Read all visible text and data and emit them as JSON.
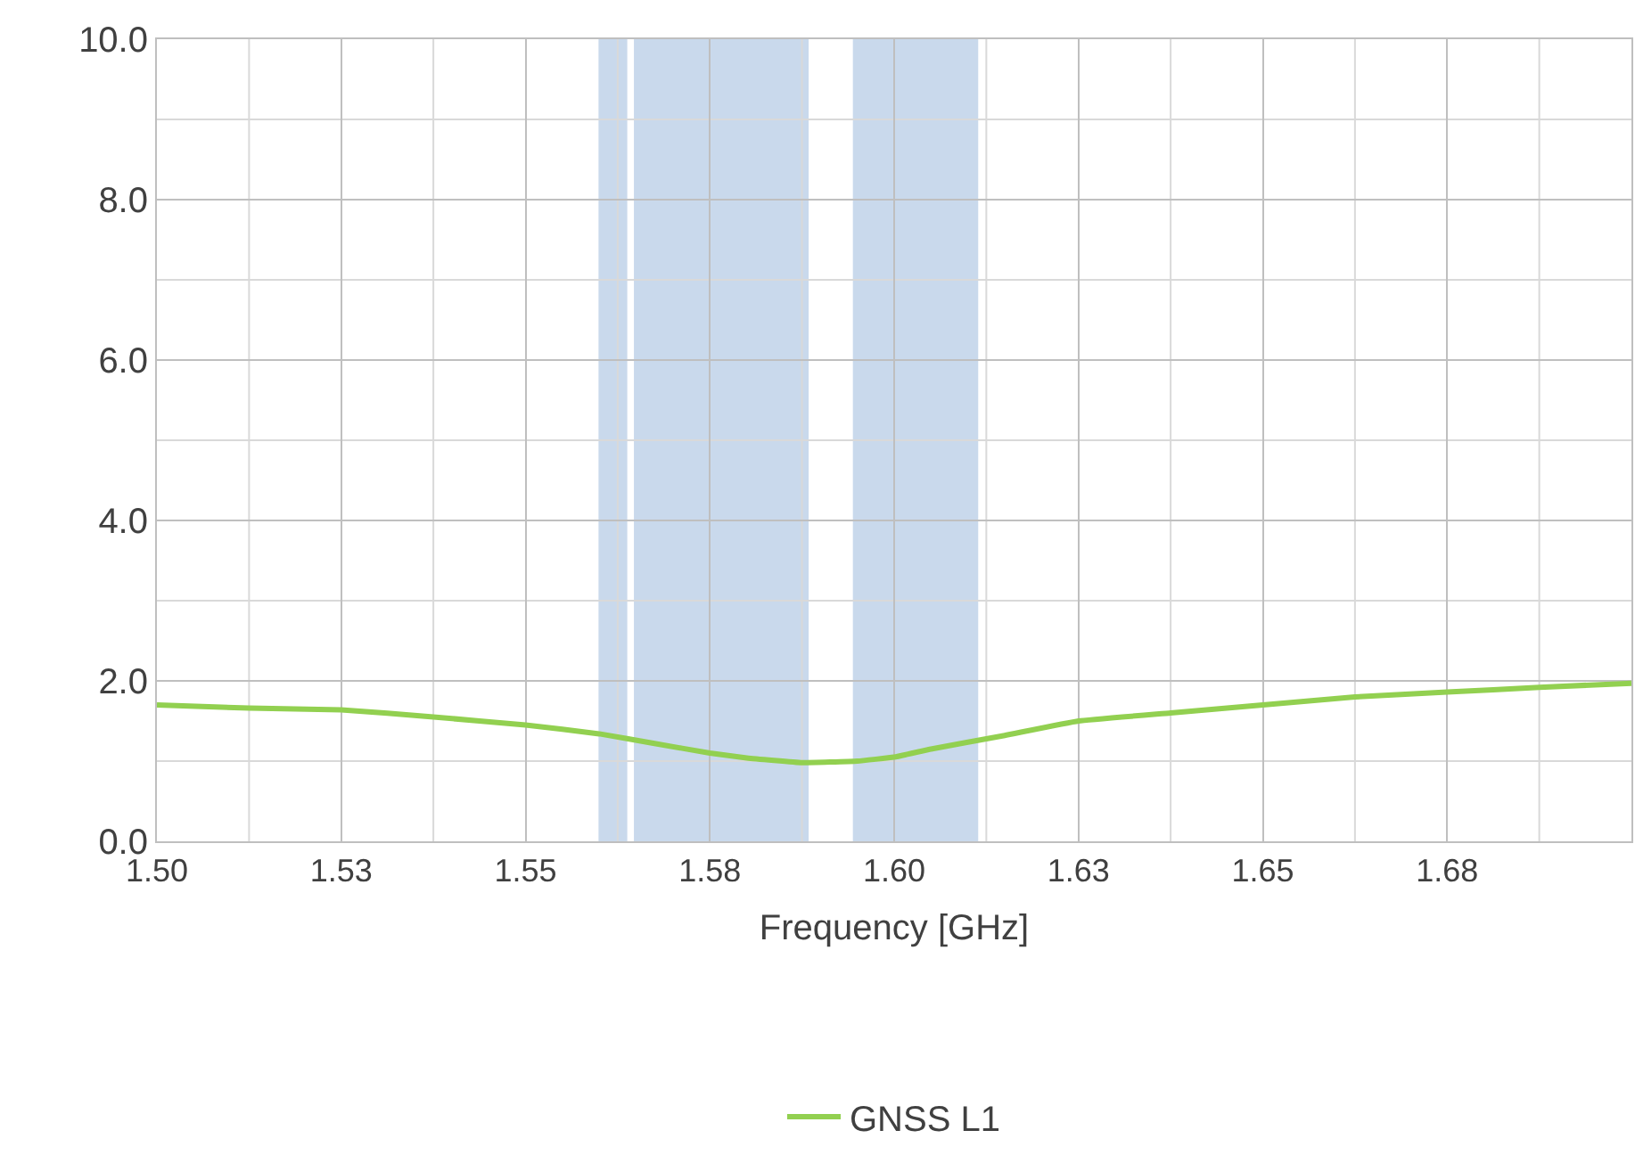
{
  "chart_data": {
    "type": "line",
    "xlabel": "Frequency [GHz]",
    "x": [
      1.5,
      1.5125,
      1.525,
      1.5375,
      1.55,
      1.56,
      1.5675,
      1.575,
      1.58,
      1.5875,
      1.595,
      1.6,
      1.605,
      1.615,
      1.625,
      1.6375,
      1.65,
      1.6625,
      1.675,
      1.6875,
      1.7
    ],
    "series": [
      {
        "name": "GNSS L1",
        "color": "#92d050",
        "values": [
          1.7,
          1.66,
          1.64,
          1.55,
          1.45,
          1.34,
          1.22,
          1.1,
          1.04,
          0.98,
          1.0,
          1.05,
          1.15,
          1.32,
          1.5,
          1.6,
          1.7,
          1.8,
          1.86,
          1.92,
          1.97
        ]
      }
    ],
    "xlim": [
      1.5,
      1.7
    ],
    "xticks": [
      {
        "value": 1.5,
        "label": "1.50"
      },
      {
        "value": 1.525,
        "label": "1.53"
      },
      {
        "value": 1.55,
        "label": "1.55"
      },
      {
        "value": 1.575,
        "label": "1.58"
      },
      {
        "value": 1.6,
        "label": "1.60"
      },
      {
        "value": 1.625,
        "label": "1.63"
      },
      {
        "value": 1.65,
        "label": "1.65"
      },
      {
        "value": 1.675,
        "label": "1.68"
      }
    ],
    "ylim": [
      0,
      10
    ],
    "yticks": [
      {
        "value": 0,
        "label": "0.0"
      },
      {
        "value": 2,
        "label": "2.0"
      },
      {
        "value": 4,
        "label": "4.0"
      },
      {
        "value": 6,
        "label": "6.0"
      },
      {
        "value": 8,
        "label": "8.0"
      },
      {
        "value": 10,
        "label": "10.0"
      }
    ],
    "bands": [
      {
        "axis": "x",
        "from": 1.5599,
        "to": 1.5638,
        "color": "#c9d9ec"
      },
      {
        "axis": "x",
        "from": 1.5647,
        "to": 1.5884,
        "color": "#c9d9ec"
      },
      {
        "axis": "x",
        "from": 1.5944,
        "to": 1.6114,
        "color": "#c9d9ec"
      }
    ],
    "grid": true,
    "legend": "bottom",
    "marker": "none",
    "line_style": "solid"
  }
}
